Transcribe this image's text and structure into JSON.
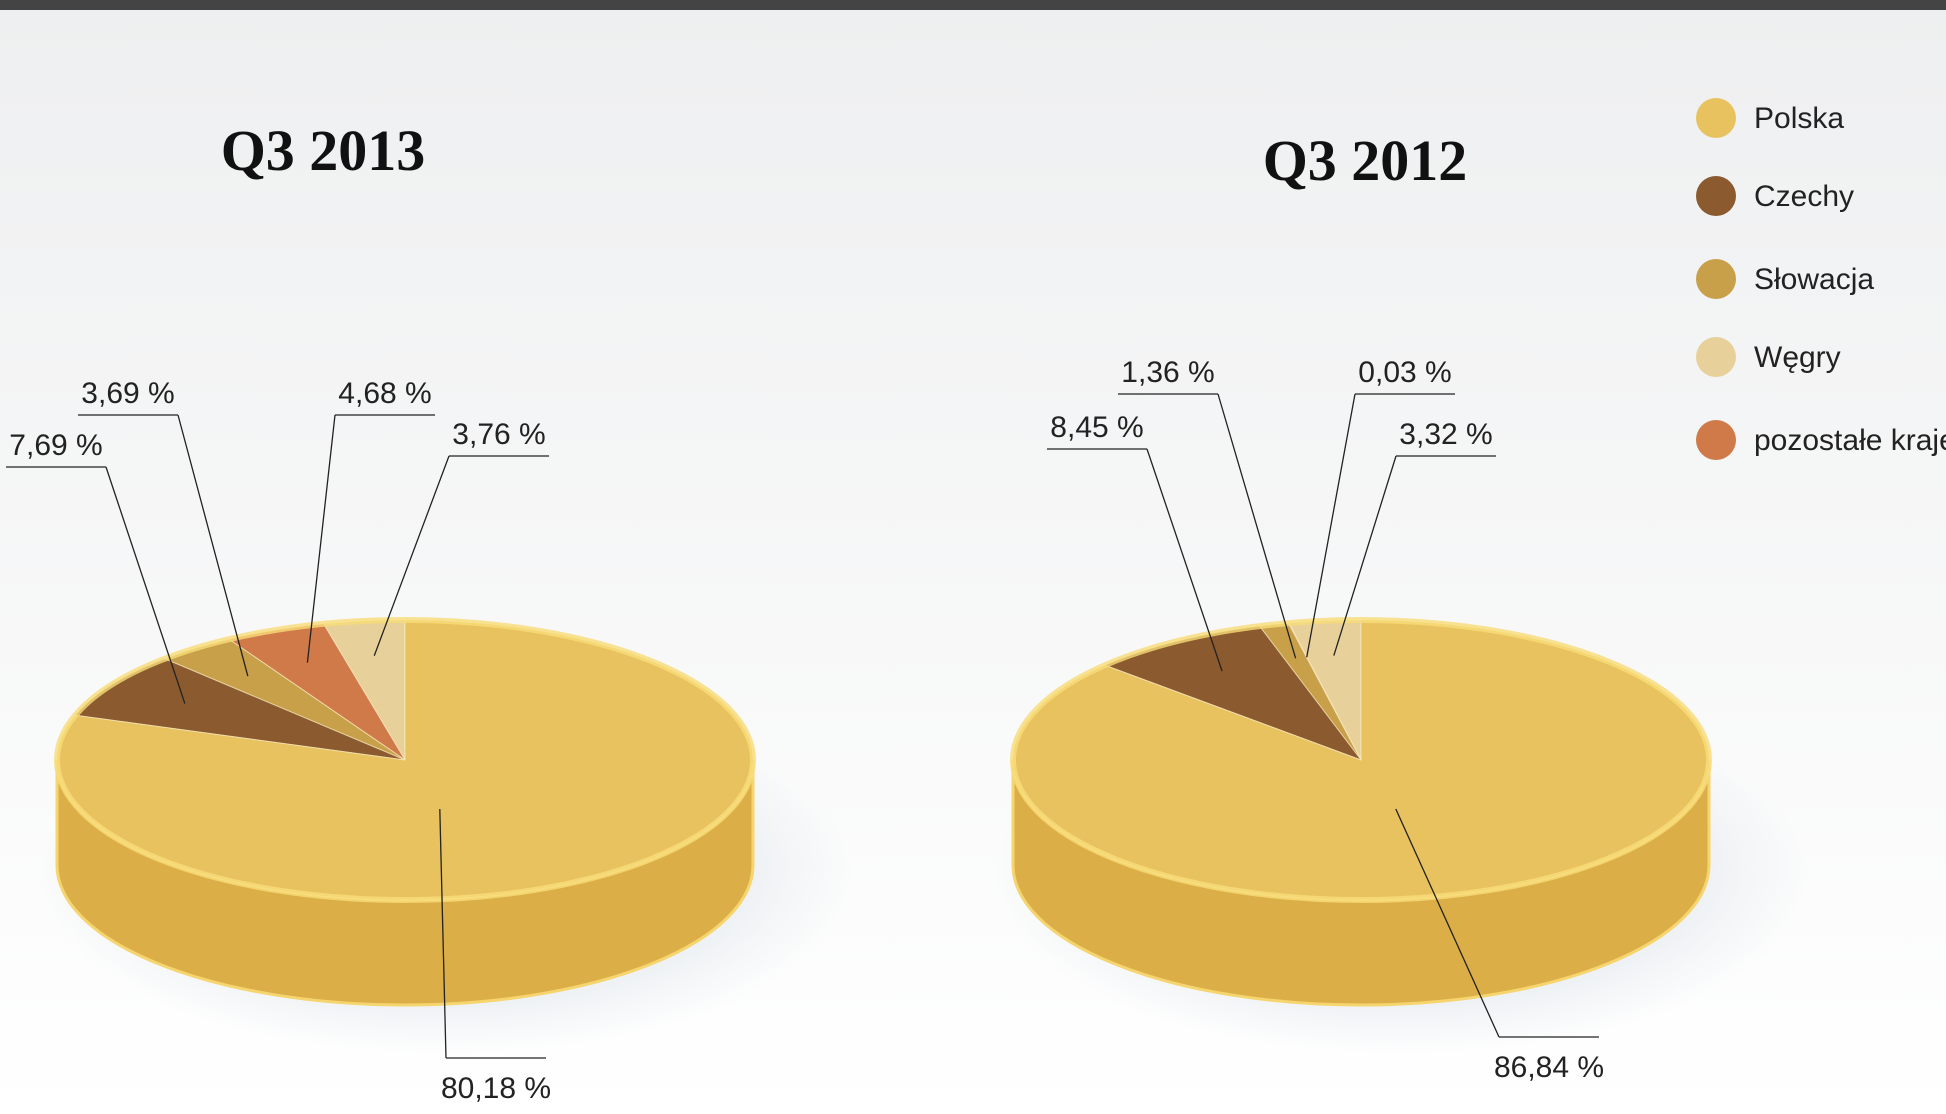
{
  "chart_data": [
    {
      "type": "pie",
      "title": "Q3 2013",
      "categories": [
        "Polska",
        "Czechy",
        "Słowacja",
        "Węgry",
        "pozostałe kraje"
      ],
      "values": [
        80.18,
        7.69,
        3.69,
        3.76,
        4.68
      ],
      "value_labels": [
        "80,18 %",
        "7,69 %",
        "3,69 %",
        "3,76 %",
        "4,68 %"
      ],
      "colors": [
        "#e8c25e",
        "#8b5a2e",
        "#c8a04a",
        "#e7d09a",
        "#cf7a48"
      ]
    },
    {
      "type": "pie",
      "title": "Q3 2012",
      "categories": [
        "Polska",
        "Czechy",
        "Słowacja",
        "Węgry",
        "pozostałe kraje"
      ],
      "values": [
        86.84,
        8.45,
        1.36,
        3.32,
        0.03
      ],
      "value_labels": [
        "86,84 %",
        "8,45 %",
        "1,36 %",
        "3,32 %",
        "0,03 %"
      ],
      "colors": [
        "#e8c25e",
        "#8b5a2e",
        "#c8a04a",
        "#e7d09a",
        "#cf7a48"
      ]
    }
  ]
}
